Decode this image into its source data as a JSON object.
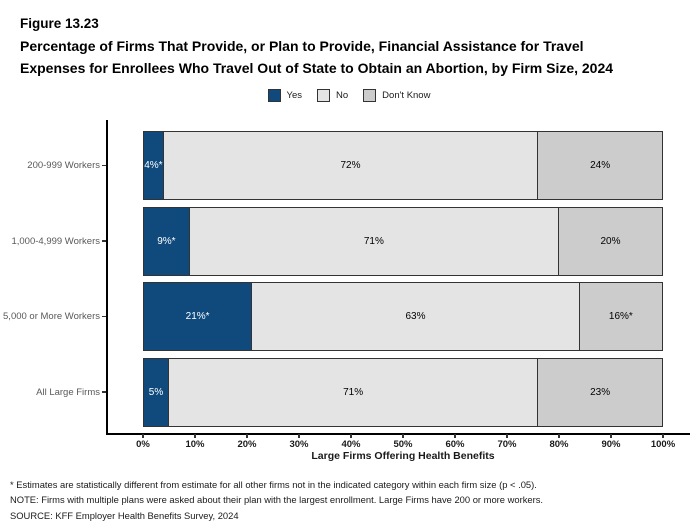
{
  "header": {
    "figure_label": "Figure 13.23",
    "title_line1": "Percentage of Firms That Provide, or Plan to Provide, Financial Assistance for Travel",
    "title_line2": "Expenses for Enrollees Who Travel Out of State to Obtain an Abortion, by Firm Size, 2024"
  },
  "colors": {
    "yes_blue": "#104A7D",
    "no_light_gray": "#E4E4E4",
    "dont_know_gray": "#CCCCCC",
    "segment_border": "#333333",
    "axis_black": "#000000",
    "category_label_gray": "#595959"
  },
  "chart_data": {
    "type": "bar",
    "orientation": "horizontal",
    "stacked": true,
    "title": "Percentage of Firms That Provide, or Plan to Provide, Financial Assistance for Travel Expenses for Enrollees Who Travel Out of State to Obtain an Abortion, by Firm Size, 2024",
    "categories": [
      "200-999 Workers",
      "1,000-4,999 Workers",
      "5,000 or More Workers",
      "All Large Firms"
    ],
    "series": [
      {
        "name": "Yes",
        "color": "#104A7D",
        "text_color": "#FFFFFF",
        "values": [
          4,
          9,
          21,
          5
        ],
        "labels": [
          "4%*",
          "9%*",
          "21%*",
          "5%"
        ]
      },
      {
        "name": "No",
        "color": "#E4E4E4",
        "text_color": "#000000",
        "values": [
          72,
          71,
          63,
          71
        ],
        "labels": [
          "72%",
          "71%",
          "63%",
          "71%"
        ]
      },
      {
        "name": "Don't Know",
        "color": "#CCCCCC",
        "text_color": "#000000",
        "values": [
          24,
          20,
          16,
          23
        ],
        "labels": [
          "24%",
          "20%",
          "16%*",
          "23%"
        ]
      }
    ],
    "xlabel": "Large Firms Offering Health Benefits",
    "x_ticks": [
      "0%",
      "10%",
      "20%",
      "30%",
      "40%",
      "50%",
      "60%",
      "70%",
      "80%",
      "90%",
      "100%"
    ],
    "xlim": [
      0,
      100
    ],
    "grid": false,
    "legend_position": "top"
  },
  "footnotes": [
    "* Estimates are statistically different from estimate for all other firms not in the indicated category within each firm size (p < .05).",
    "NOTE: Firms with multiple plans were asked about their plan with the largest enrollment.  Large Firms have 200 or more workers.",
    "SOURCE: KFF Employer Health Benefits Survey, 2024"
  ]
}
